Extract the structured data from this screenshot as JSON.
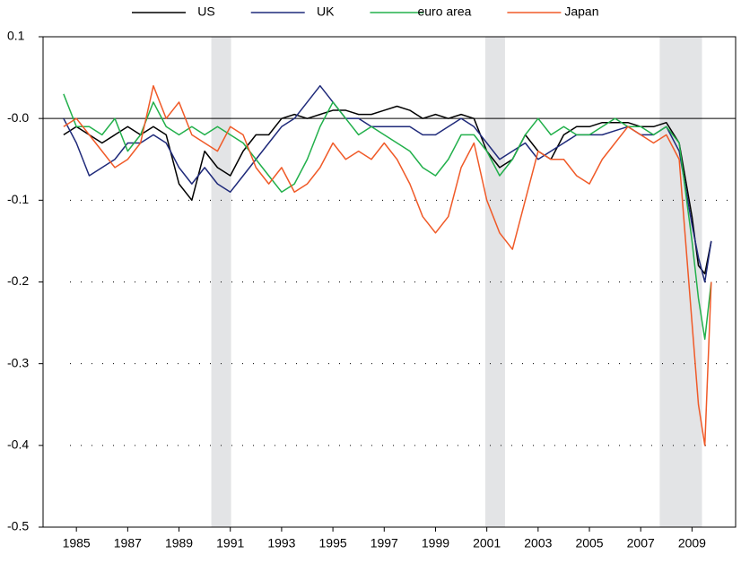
{
  "chart_data": {
    "type": "line",
    "x": [
      1984.5,
      1985,
      1985.5,
      1986,
      1986.5,
      1987,
      1987.5,
      1988,
      1988.5,
      1989,
      1989.5,
      1990,
      1990.5,
      1991,
      1991.5,
      1992,
      1992.5,
      1993,
      1993.5,
      1994,
      1994.5,
      1995,
      1995.5,
      1996,
      1996.5,
      1997,
      1997.5,
      1998,
      1998.5,
      1999,
      1999.5,
      2000,
      2000.5,
      2001,
      2001.5,
      2002,
      2002.5,
      2003,
      2003.5,
      2004,
      2004.5,
      2005,
      2005.5,
      2006,
      2006.5,
      2007,
      2007.5,
      2008,
      2008.5,
      2009,
      2009.25,
      2009.5,
      2009.75
    ],
    "series": [
      {
        "name": "US",
        "color": "#000000",
        "values": [
          -0.02,
          -0.01,
          -0.02,
          -0.03,
          -0.02,
          -0.01,
          -0.02,
          -0.01,
          -0.02,
          -0.08,
          -0.1,
          -0.04,
          -0.06,
          -0.07,
          -0.04,
          -0.02,
          -0.02,
          0.0,
          0.005,
          0.0,
          0.005,
          0.01,
          0.01,
          0.005,
          0.005,
          0.01,
          0.015,
          0.01,
          0.0,
          0.005,
          0.0,
          0.005,
          0.0,
          -0.04,
          -0.06,
          -0.05,
          -0.02,
          -0.04,
          -0.05,
          -0.02,
          -0.01,
          -0.01,
          -0.005,
          -0.005,
          -0.005,
          -0.01,
          -0.01,
          -0.005,
          -0.03,
          -0.12,
          -0.18,
          -0.19,
          -0.15
        ]
      },
      {
        "name": "UK",
        "color": "#1f2a7a",
        "values": [
          0.0,
          -0.03,
          -0.07,
          -0.06,
          -0.05,
          -0.03,
          -0.03,
          -0.02,
          -0.03,
          -0.06,
          -0.08,
          -0.06,
          -0.08,
          -0.09,
          -0.07,
          -0.05,
          -0.03,
          -0.01,
          0.0,
          0.02,
          0.04,
          0.02,
          0.0,
          0.0,
          -0.01,
          -0.01,
          -0.01,
          -0.01,
          -0.02,
          -0.02,
          -0.01,
          0.0,
          -0.01,
          -0.03,
          -0.05,
          -0.04,
          -0.03,
          -0.05,
          -0.04,
          -0.03,
          -0.02,
          -0.02,
          -0.02,
          -0.015,
          -0.01,
          -0.02,
          -0.02,
          -0.01,
          -0.04,
          -0.13,
          -0.17,
          -0.2,
          -0.15
        ]
      },
      {
        "name": "euro area",
        "color": "#22b04b",
        "values": [
          0.03,
          -0.01,
          -0.01,
          -0.02,
          0.0,
          -0.04,
          -0.02,
          0.02,
          -0.01,
          -0.02,
          -0.01,
          -0.02,
          -0.01,
          -0.02,
          -0.03,
          -0.05,
          -0.07,
          -0.09,
          -0.08,
          -0.05,
          -0.01,
          0.02,
          0.0,
          -0.02,
          -0.01,
          -0.02,
          -0.03,
          -0.04,
          -0.06,
          -0.07,
          -0.05,
          -0.02,
          -0.02,
          -0.04,
          -0.07,
          -0.05,
          -0.02,
          0.0,
          -0.02,
          -0.01,
          -0.02,
          -0.02,
          -0.01,
          0.0,
          -0.01,
          -0.01,
          -0.02,
          -0.01,
          -0.03,
          -0.15,
          -0.22,
          -0.27,
          -0.2
        ]
      },
      {
        "name": "Japan",
        "color": "#f05a28",
        "values": [
          -0.01,
          0.0,
          -0.02,
          -0.04,
          -0.06,
          -0.05,
          -0.03,
          0.04,
          0.0,
          0.02,
          -0.02,
          -0.03,
          -0.04,
          -0.01,
          -0.02,
          -0.06,
          -0.08,
          -0.06,
          -0.09,
          -0.08,
          -0.06,
          -0.03,
          -0.05,
          -0.04,
          -0.05,
          -0.03,
          -0.05,
          -0.08,
          -0.12,
          -0.14,
          -0.12,
          -0.06,
          -0.03,
          -0.1,
          -0.14,
          -0.16,
          -0.1,
          -0.04,
          -0.05,
          -0.05,
          -0.07,
          -0.08,
          -0.05,
          -0.03,
          -0.01,
          -0.02,
          -0.03,
          -0.02,
          -0.05,
          -0.25,
          -0.35,
          -0.4,
          -0.2
        ]
      }
    ],
    "xlim": [
      1983.7,
      2010.7
    ],
    "xticks": [
      1985,
      1987,
      1989,
      1991,
      1993,
      1995,
      1997,
      1999,
      2001,
      2003,
      2005,
      2007,
      2009
    ],
    "ylim": [
      -0.5,
      0.1
    ],
    "yticks": [
      -0.5,
      -0.4,
      -0.3,
      -0.2,
      -0.1,
      {
        "value": 0,
        "label": "-0.0"
      },
      0.1
    ],
    "grid": true,
    "zero_line": true,
    "shaded_periods": [
      [
        1990.26,
        1991.03
      ],
      [
        2000.94,
        2001.71
      ],
      [
        2007.74,
        2009.39
      ]
    ],
    "legend": "top"
  }
}
